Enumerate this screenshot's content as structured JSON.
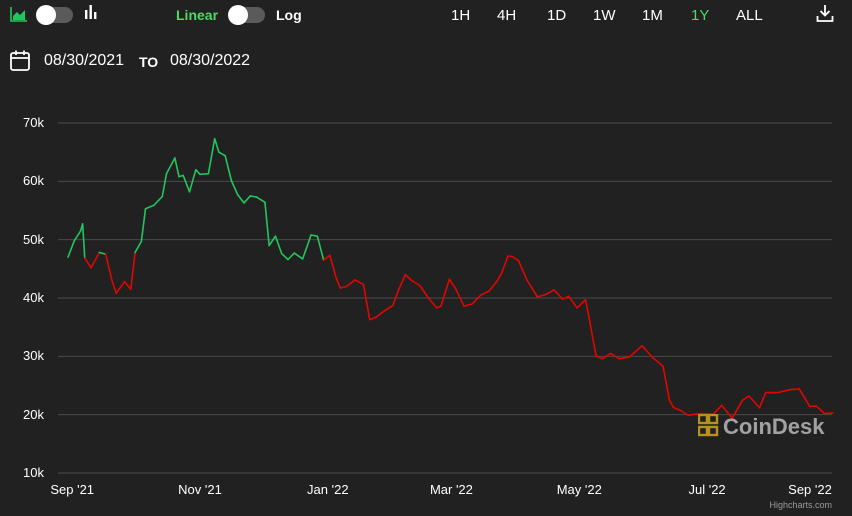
{
  "toolbar": {
    "scale_options": {
      "linear_label": "Linear",
      "log_label": "Log",
      "selected": "Linear"
    },
    "icons": [
      "area-chart-icon",
      "bar-chart-icon",
      "download-icon"
    ],
    "ranges": [
      "1H",
      "4H",
      "1D",
      "1W",
      "1M",
      "1Y",
      "ALL"
    ],
    "selected_range": "1Y"
  },
  "date_range": {
    "from": "08/30/2021",
    "to_label": "TO",
    "to": "08/30/2022",
    "icon": "calendar-icon"
  },
  "colors": {
    "background": "#212121",
    "up": "#22c55e",
    "down": "#e10600",
    "accent": "#4cd964"
  },
  "watermark": "CoinDesk",
  "credit": "Highcharts.com",
  "chart_data": {
    "type": "line",
    "title": "",
    "xlabel": "",
    "ylabel": "",
    "ylim": [
      10000,
      70000
    ],
    "ytick_labels": [
      "10k",
      "20k",
      "30k",
      "40k",
      "50k",
      "60k",
      "70k"
    ],
    "xtick_labels": [
      "Sep '21",
      "Nov '21",
      "Jan '22",
      "Mar '22",
      "May '22",
      "Jul '22",
      "Sep '22"
    ],
    "grid": true,
    "up_color": "#22c55e",
    "down_color": "#e10600",
    "series": [
      {
        "x": [
          "2021-08-30",
          "2021-09-02",
          "2021-09-05",
          "2021-09-06",
          "2021-09-07",
          "2021-09-08",
          "2021-09-10",
          "2021-09-14",
          "2021-09-17",
          "2021-09-20",
          "2021-09-22",
          "2021-09-26",
          "2021-09-29",
          "2021-10-01",
          "2021-10-04",
          "2021-10-06",
          "2021-10-10",
          "2021-10-14",
          "2021-10-16",
          "2021-10-20",
          "2021-10-22",
          "2021-10-24",
          "2021-10-27",
          "2021-10-30",
          "2021-11-01",
          "2021-11-05",
          "2021-11-08",
          "2021-11-10",
          "2021-11-13",
          "2021-11-16",
          "2021-11-19",
          "2021-11-22",
          "2021-11-25",
          "2021-11-28",
          "2021-12-02",
          "2021-12-04",
          "2021-12-07",
          "2021-12-10",
          "2021-12-13",
          "2021-12-16",
          "2021-12-20",
          "2021-12-24",
          "2021-12-27",
          "2021-12-30",
          "2022-01-02",
          "2022-01-05",
          "2022-01-07",
          "2022-01-10",
          "2022-01-14",
          "2022-01-18",
          "2022-01-21",
          "2022-01-24",
          "2022-01-28",
          "2022-02-01",
          "2022-02-04",
          "2022-02-07",
          "2022-02-10",
          "2022-02-14",
          "2022-02-18",
          "2022-02-22",
          "2022-02-24",
          "2022-02-28",
          "2022-03-03",
          "2022-03-07",
          "2022-03-11",
          "2022-03-15",
          "2022-03-19",
          "2022-03-23",
          "2022-03-25",
          "2022-03-28",
          "2022-03-30",
          "2022-04-02",
          "2022-04-06",
          "2022-04-11",
          "2022-04-15",
          "2022-04-19",
          "2022-04-23",
          "2022-04-26",
          "2022-04-30",
          "2022-05-04",
          "2022-05-06",
          "2022-05-09",
          "2022-05-12",
          "2022-05-16",
          "2022-05-20",
          "2022-05-25",
          "2022-05-31",
          "2022-06-05",
          "2022-06-10",
          "2022-06-13",
          "2022-06-15",
          "2022-06-18",
          "2022-06-22",
          "2022-06-28",
          "2022-07-04",
          "2022-07-08",
          "2022-07-13",
          "2022-07-18",
          "2022-07-21",
          "2022-07-26",
          "2022-07-29",
          "2022-08-04",
          "2022-08-10",
          "2022-08-14",
          "2022-08-19",
          "2022-08-22",
          "2022-08-26",
          "2022-08-30"
        ],
        "y": [
          47000,
          49800,
          51500,
          52700,
          46800,
          46300,
          45200,
          47800,
          47500,
          43000,
          40800,
          42800,
          41500,
          47800,
          49700,
          55300,
          55900,
          57400,
          61300,
          64000,
          60800,
          61000,
          58200,
          62000,
          61200,
          61300,
          67300,
          65000,
          64400,
          60100,
          57700,
          56300,
          57500,
          57300,
          56400,
          49000,
          50600,
          47600,
          46600,
          47700,
          46700,
          50800,
          50600,
          46500,
          47300,
          43400,
          41700,
          42000,
          43100,
          42300,
          36300,
          36700,
          37800,
          38700,
          41600,
          44000,
          43000,
          42100,
          40000,
          38300,
          38600,
          43200,
          41600,
          38600,
          39000,
          40500,
          41200,
          43000,
          44300,
          47200,
          47100,
          46400,
          43100,
          40200,
          40600,
          41400,
          39800,
          40300,
          38300,
          39700,
          36000,
          30100,
          29600,
          30500,
          29600,
          29900,
          31800,
          29800,
          28300,
          22500,
          21200,
          20800,
          19900,
          20200,
          20100,
          21600,
          19400,
          22500,
          23200,
          21200,
          23800,
          23800,
          24300,
          24400,
          21400,
          21500,
          20200,
          20300
        ]
      }
    ]
  }
}
